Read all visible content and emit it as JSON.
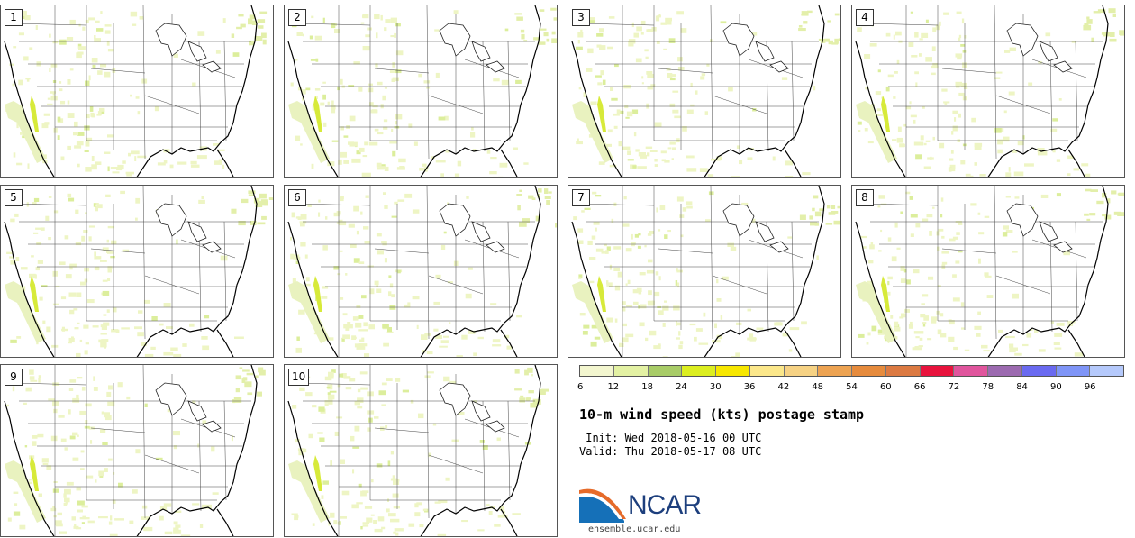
{
  "members": [
    {
      "label": "1"
    },
    {
      "label": "2"
    },
    {
      "label": "3"
    },
    {
      "label": "4"
    },
    {
      "label": "5"
    },
    {
      "label": "6"
    },
    {
      "label": "7"
    },
    {
      "label": "8"
    },
    {
      "label": "9"
    },
    {
      "label": "10"
    }
  ],
  "legend": {
    "colors": [
      "#f3f6cf",
      "#e3f1a3",
      "#a8cc67",
      "#dcee20",
      "#f7e700",
      "#fbe78a",
      "#f6d284",
      "#eda352",
      "#e68b3d",
      "#dc7a42",
      "#e8133d",
      "#e0559d",
      "#9c6ab0",
      "#6a6af0",
      "#7f95f7",
      "#b5c9fb"
    ],
    "ticks": [
      "6",
      "12",
      "18",
      "24",
      "30",
      "36",
      "42",
      "48",
      "54",
      "60",
      "66",
      "72",
      "78",
      "84",
      "90",
      "96"
    ]
  },
  "title": "10-m wind speed (kts) postage stamp",
  "init_line": " Init: Wed 2018-05-16 00 UTC",
  "valid_line": "Valid: Thu 2018-05-17 08 UTC",
  "logo": {
    "text": "NCAR",
    "url": "ensemble.ucar.edu"
  }
}
